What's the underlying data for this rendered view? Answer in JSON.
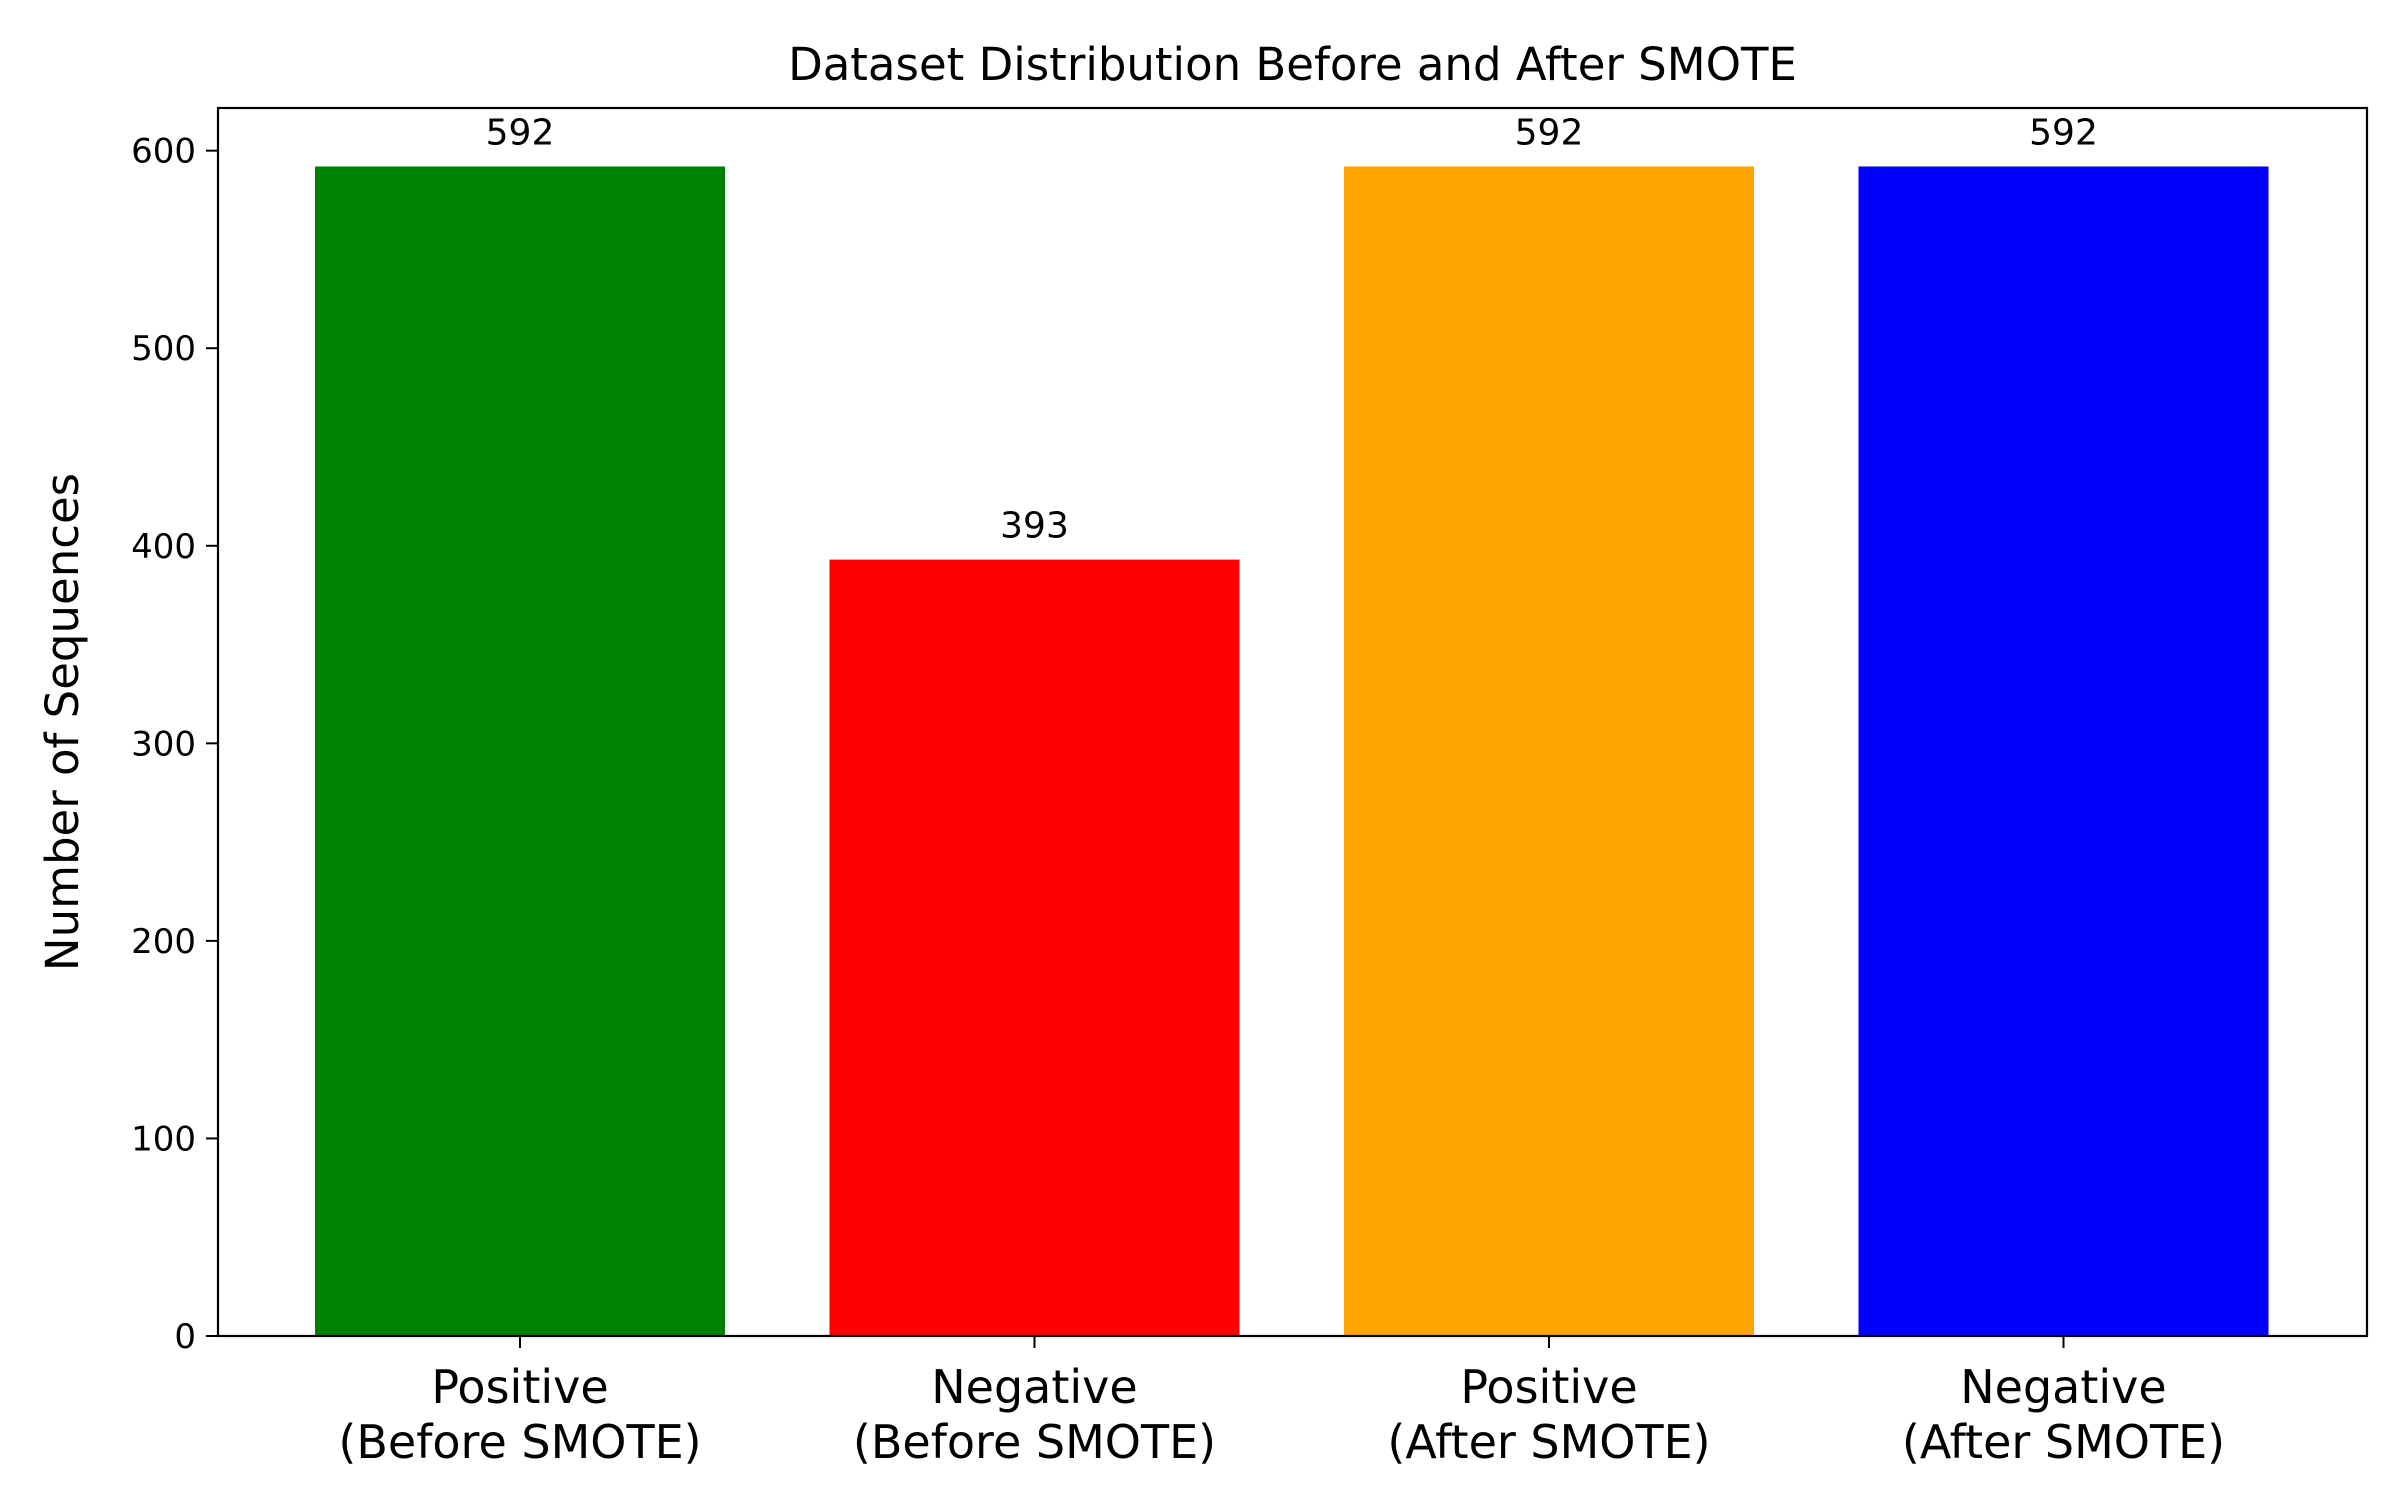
{
  "chart_data": {
    "type": "bar",
    "title": "Dataset Distribution Before and After SMOTE",
    "xlabel": "",
    "ylabel": "Number of Sequences",
    "categories": [
      [
        "Positive",
        "(Before SMOTE)"
      ],
      [
        "Negative",
        "(Before SMOTE)"
      ],
      [
        "Positive",
        "(After SMOTE)"
      ],
      [
        "Negative",
        "(After SMOTE)"
      ]
    ],
    "values": [
      592,
      393,
      592,
      592
    ],
    "data_labels": [
      "592",
      "393",
      "592",
      "592"
    ],
    "colors": [
      "#008000",
      "#ff0000",
      "#ffa500",
      "#0000ff"
    ],
    "ylim": [
      0,
      621.6
    ],
    "yticks": [
      0,
      100,
      200,
      300,
      400,
      500,
      600
    ],
    "grid": false,
    "legend": "none"
  }
}
